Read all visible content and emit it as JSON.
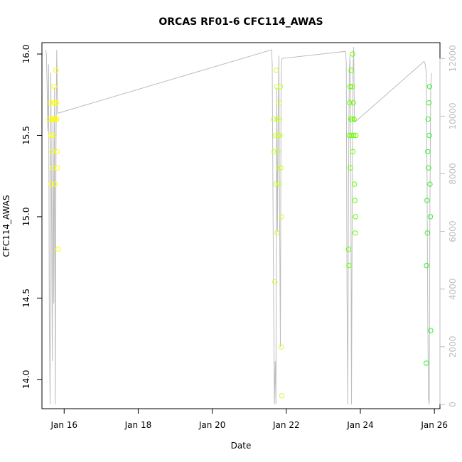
{
  "chart_data": {
    "type": "scatter",
    "title": "ORCAS RF01-6 CFC114_AWAS",
    "xlabel": "Date",
    "ylabel": "CFC114_AWAS",
    "x_ticks": [
      {
        "label": "Jan 16",
        "day": 16
      },
      {
        "label": "Jan 18",
        "day": 18
      },
      {
        "label": "Jan 20",
        "day": 20
      },
      {
        "label": "Jan 22",
        "day": 22
      },
      {
        "label": "Jan 24",
        "day": 24
      },
      {
        "label": "Jan 26",
        "day": 26
      }
    ],
    "y_ticks": [
      "14.0",
      "14.5",
      "15.0",
      "15.5",
      "16.0"
    ],
    "y2_ticks": [
      "0",
      "2000",
      "4000",
      "6000",
      "8000",
      "10000",
      "12000"
    ],
    "xlim": [
      15.4,
      26.15
    ],
    "ylim": [
      13.82,
      16.07
    ],
    "y2lim": [
      -150,
      12550
    ],
    "grid": false,
    "series": [
      {
        "color": "#ffff00",
        "points": [
          [
            15.6,
            15.6
          ],
          [
            15.62,
            15.7
          ],
          [
            15.64,
            15.5
          ],
          [
            15.65,
            15.2
          ],
          [
            15.67,
            15.6
          ],
          [
            15.68,
            15.4
          ],
          [
            15.69,
            15.3
          ],
          [
            15.7,
            15.5
          ],
          [
            15.71,
            15.6
          ],
          [
            15.72,
            15.7
          ],
          [
            15.73,
            15.8
          ],
          [
            15.74,
            15.6
          ],
          [
            15.75,
            15.7
          ],
          [
            15.76,
            15.2
          ],
          [
            15.77,
            15.6
          ],
          [
            15.78,
            15.9
          ],
          [
            15.79,
            15.7
          ],
          [
            15.8,
            15.6
          ],
          [
            15.81,
            15.4
          ],
          [
            15.82,
            15.3
          ],
          [
            15.84,
            14.8
          ]
        ]
      },
      {
        "color": "#ccff33",
        "points": [
          [
            21.65,
            15.6
          ],
          [
            21.67,
            15.4
          ],
          [
            21.69,
            14.6
          ],
          [
            21.71,
            15.5
          ],
          [
            21.72,
            15.2
          ],
          [
            21.73,
            15.9
          ],
          [
            21.74,
            15.8
          ],
          [
            21.75,
            14.9
          ],
          [
            21.76,
            15.6
          ],
          [
            21.77,
            15.4
          ],
          [
            21.78,
            15.5
          ],
          [
            21.79,
            15.3
          ],
          [
            21.8,
            15.7
          ],
          [
            21.81,
            15.2
          ],
          [
            21.82,
            15.6
          ],
          [
            21.83,
            15.5
          ],
          [
            21.84,
            15.8
          ],
          [
            21.85,
            15.3
          ],
          [
            21.86,
            14.2
          ],
          [
            21.87,
            15.0
          ],
          [
            21.88,
            13.9
          ]
        ]
      },
      {
        "color": "#66ff00",
        "points": [
          [
            23.68,
            14.8
          ],
          [
            23.69,
            14.7
          ],
          [
            23.7,
            15.5
          ],
          [
            23.71,
            15.7
          ],
          [
            23.72,
            15.8
          ],
          [
            23.73,
            15.3
          ],
          [
            23.74,
            15.6
          ],
          [
            23.75,
            15.9
          ],
          [
            23.76,
            15.5
          ],
          [
            23.77,
            15.6
          ],
          [
            23.78,
            15.8
          ],
          [
            23.79,
            16.0
          ],
          [
            23.8,
            15.4
          ],
          [
            23.81,
            15.7
          ],
          [
            23.82,
            15.5
          ],
          [
            23.83,
            15.6
          ],
          [
            23.84,
            15.2
          ],
          [
            23.85,
            15.1
          ],
          [
            23.86,
            14.9
          ],
          [
            23.87,
            15.0
          ],
          [
            23.88,
            15.5
          ]
        ]
      },
      {
        "color": "#33ee33",
        "points": [
          [
            25.78,
            14.1
          ],
          [
            25.79,
            14.7
          ],
          [
            25.8,
            15.1
          ],
          [
            25.81,
            14.9
          ],
          [
            25.82,
            15.4
          ],
          [
            25.83,
            15.6
          ],
          [
            25.84,
            15.3
          ],
          [
            25.85,
            15.7
          ],
          [
            25.86,
            15.5
          ],
          [
            25.87,
            15.8
          ],
          [
            25.88,
            15.2
          ],
          [
            25.89,
            15.0
          ],
          [
            25.9,
            14.3
          ]
        ]
      }
    ],
    "altitude_series": {
      "color": "#bdbdbd",
      "axis": "right",
      "points": [
        [
          15.5,
          12300
        ],
        [
          15.52,
          12150
        ],
        [
          15.54,
          11000
        ],
        [
          15.56,
          9500
        ],
        [
          15.58,
          11800
        ],
        [
          15.6,
          3000
        ],
        [
          15.62,
          0
        ],
        [
          15.64,
          11500
        ],
        [
          15.66,
          7000
        ],
        [
          15.68,
          1500
        ],
        [
          15.7,
          10000
        ],
        [
          15.72,
          3500
        ],
        [
          15.74,
          11000
        ],
        [
          15.75,
          6000
        ],
        [
          15.76,
          0
        ],
        [
          15.78,
          9000
        ],
        [
          15.8,
          12300
        ],
        [
          15.82,
          10100
        ],
        [
          21.6,
          12300
        ],
        [
          21.62,
          11800
        ],
        [
          21.64,
          7000
        ],
        [
          21.66,
          3000
        ],
        [
          21.68,
          0
        ],
        [
          21.7,
          1500
        ],
        [
          21.72,
          0
        ],
        [
          21.74,
          11000
        ],
        [
          21.76,
          6000
        ],
        [
          21.78,
          10000
        ],
        [
          21.8,
          12100
        ],
        [
          21.82,
          6500
        ],
        [
          21.84,
          2000
        ],
        [
          21.86,
          11500
        ],
        [
          21.88,
          12000
        ],
        [
          23.6,
          12250
        ],
        [
          23.62,
          11800
        ],
        [
          23.64,
          4000
        ],
        [
          23.66,
          0
        ],
        [
          23.68,
          7500
        ],
        [
          23.7,
          11500
        ],
        [
          23.72,
          12100
        ],
        [
          23.74,
          9000
        ],
        [
          23.76,
          0
        ],
        [
          23.78,
          6500
        ],
        [
          23.8,
          11500
        ],
        [
          23.82,
          12400
        ],
        [
          23.84,
          9800
        ],
        [
          23.86,
          9800
        ],
        [
          25.72,
          11900
        ],
        [
          25.75,
          11800
        ],
        [
          25.78,
          11500
        ],
        [
          25.8,
          8000
        ],
        [
          25.82,
          3000
        ],
        [
          25.84,
          200
        ],
        [
          25.86,
          0
        ],
        [
          25.88,
          7000
        ],
        [
          25.9,
          11000
        ],
        [
          25.92,
          11500
        ]
      ]
    }
  }
}
